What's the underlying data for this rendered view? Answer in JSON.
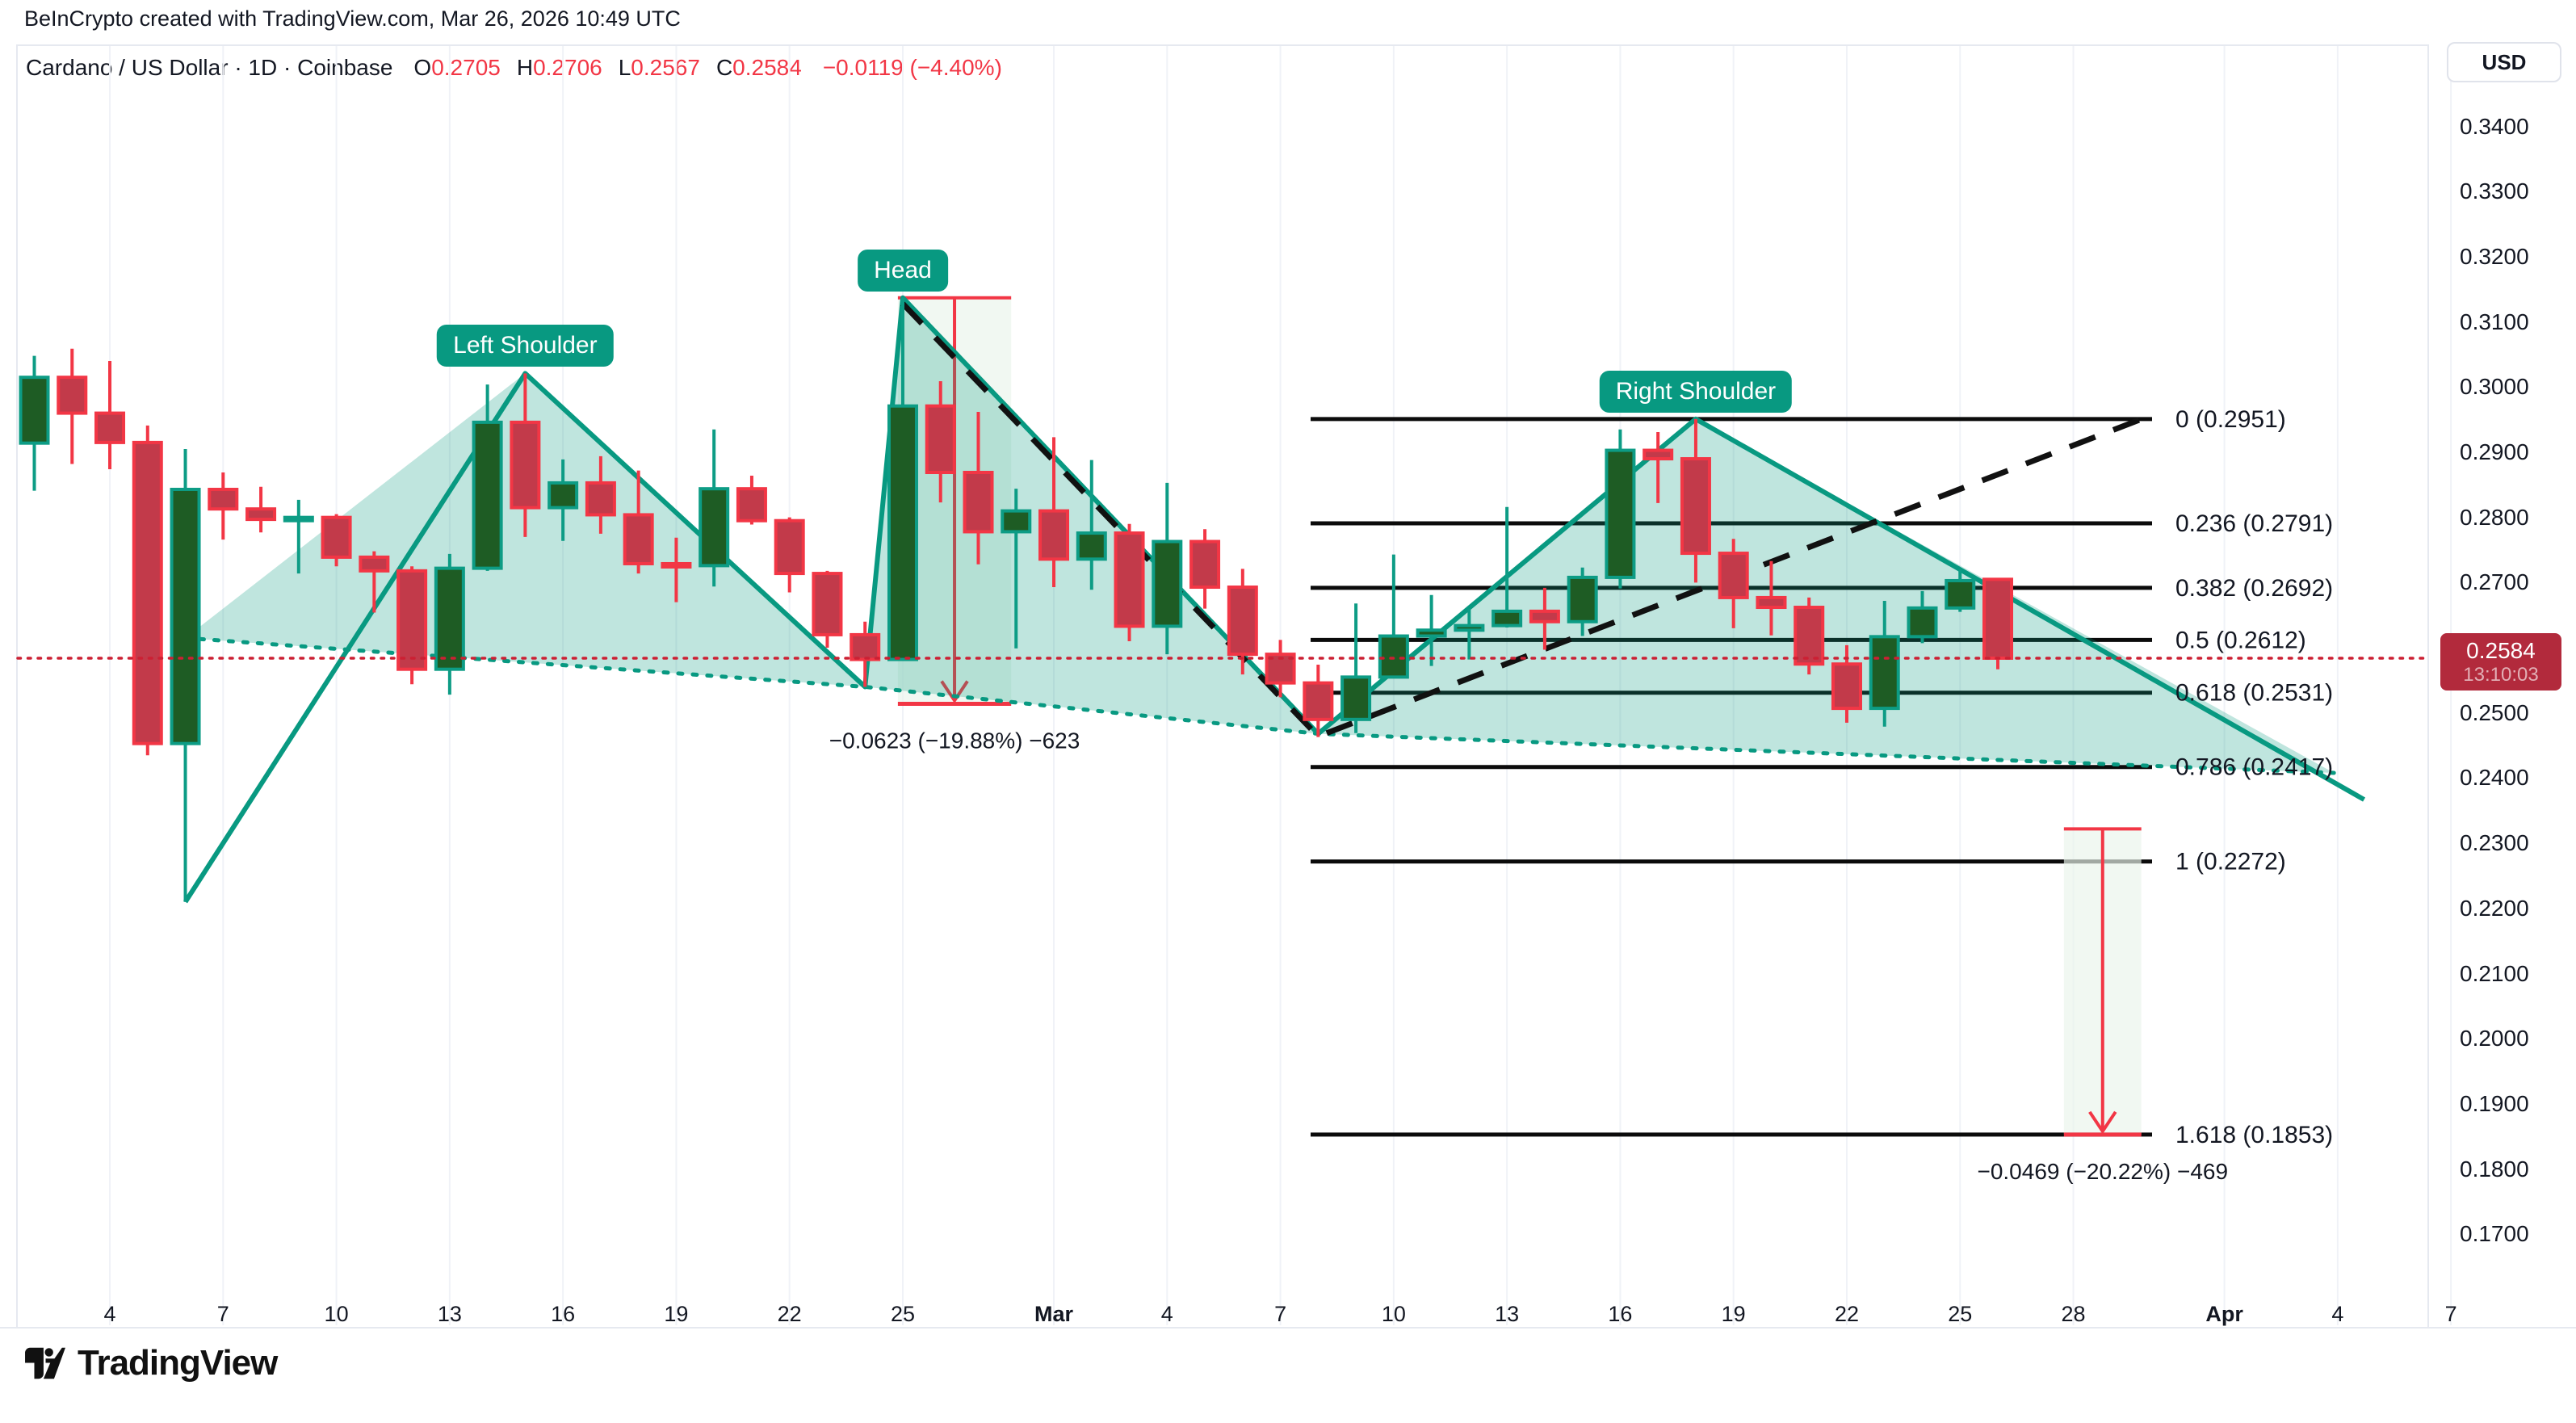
{
  "header": {
    "attribution": "BeInCrypto created with TradingView.com, Mar 26, 2026 10:49 UTC"
  },
  "symbol_bar": {
    "title": "Cardano / US Dollar · 1D · Coinbase",
    "ohlc": [
      {
        "label": "O",
        "value": "0.2705"
      },
      {
        "label": "H",
        "value": "0.2706"
      },
      {
        "label": "L",
        "value": "0.2567"
      },
      {
        "label": "C",
        "value": "0.2584"
      }
    ],
    "change": "−0.0119 (−4.40%)"
  },
  "price_axis": {
    "currency": "USD",
    "ticks": [
      "0.3400",
      "0.3300",
      "0.3200",
      "0.3100",
      "0.3000",
      "0.2900",
      "0.2800",
      "0.2700",
      "0.2600",
      "0.2500",
      "0.2400",
      "0.2300",
      "0.2200",
      "0.2100",
      "0.2000",
      "0.1900",
      "0.1800",
      "0.1700"
    ],
    "badge": {
      "price": "0.2584",
      "countdown": "13:10:03"
    }
  },
  "time_axis": {
    "ticks": [
      {
        "label": "4",
        "i": 2
      },
      {
        "label": "7",
        "i": 5
      },
      {
        "label": "10",
        "i": 8
      },
      {
        "label": "13",
        "i": 11
      },
      {
        "label": "16",
        "i": 14
      },
      {
        "label": "19",
        "i": 17
      },
      {
        "label": "22",
        "i": 20
      },
      {
        "label": "25",
        "i": 23
      },
      {
        "label": "Mar",
        "i": 27,
        "month": true
      },
      {
        "label": "4",
        "i": 30
      },
      {
        "label": "7",
        "i": 33
      },
      {
        "label": "10",
        "i": 36
      },
      {
        "label": "13",
        "i": 39
      },
      {
        "label": "16",
        "i": 42
      },
      {
        "label": "19",
        "i": 45
      },
      {
        "label": "22",
        "i": 48
      },
      {
        "label": "25",
        "i": 51
      },
      {
        "label": "28",
        "i": 54
      },
      {
        "label": "Apr",
        "i": 58,
        "month": true
      },
      {
        "label": "4",
        "i": 61
      },
      {
        "label": "7",
        "i": 64
      }
    ]
  },
  "fib_levels": [
    {
      "label": "0 (0.2951)",
      "ratio": 0,
      "price": 0.2951
    },
    {
      "label": "0.236 (0.2791)",
      "ratio": 0.236,
      "price": 0.2791
    },
    {
      "label": "0.382 (0.2692)",
      "ratio": 0.382,
      "price": 0.2692
    },
    {
      "label": "0.5 (0.2612)",
      "ratio": 0.5,
      "price": 0.2612
    },
    {
      "label": "0.618 (0.2531)",
      "ratio": 0.618,
      "price": 0.2531
    },
    {
      "label": "0.786 (0.2417)",
      "ratio": 0.786,
      "price": 0.2417
    },
    {
      "label": "1 (0.2272)",
      "ratio": 1,
      "price": 0.2272
    },
    {
      "label": "1.618 (0.1853)",
      "ratio": 1.618,
      "price": 0.1853
    }
  ],
  "pattern": {
    "labels": [
      {
        "text": "Left Shoulder",
        "i": 13,
        "p": 0.3021
      },
      {
        "text": "Head",
        "i": 23,
        "p": 0.3137
      },
      {
        "text": "Right Shoulder",
        "i": 44,
        "p": 0.2951
      }
    ],
    "solid_pivots": [
      {
        "i": 4,
        "p": 0.221
      },
      {
        "i": 13,
        "p": 0.3021
      },
      {
        "i": 22,
        "p": 0.254
      },
      {
        "i": 23,
        "p": 0.3137
      },
      {
        "i": 34,
        "p": 0.2468
      },
      {
        "i": 44,
        "p": 0.2951
      },
      {
        "i": 61.7,
        "p": 0.2367
      }
    ],
    "dotted_baseline": [
      {
        "i": 4,
        "p": 0.2615
      },
      {
        "i": 22,
        "p": 0.254
      },
      {
        "i": 34,
        "p": 0.2468
      },
      {
        "i": 60.9,
        "p": 0.2408
      }
    ],
    "dashed_neckline": [
      {
        "i": 23,
        "p": 0.3128
      },
      {
        "i": 34,
        "p": 0.2464
      },
      {
        "i": 55.9,
        "p": 0.2953
      }
    ]
  },
  "measurements": [
    {
      "text": "−0.0623 (−19.88%) −623",
      "from_price": 0.3137,
      "to_price": 0.2514,
      "i_start": 22.87,
      "i_end": 25.87
    },
    {
      "text": "−0.0469 (−20.22%) −469",
      "from_price": 0.2322,
      "to_price": 0.1853,
      "i_start": 53.75,
      "i_end": 55.8
    }
  ],
  "current_price_line": {
    "price": 0.2584
  },
  "logo": {
    "text": "TradingView"
  },
  "colors": {
    "up_fill": "#1e5c24",
    "up_stroke": "#0d9c85",
    "down_fill": "#c23a4a",
    "down_stroke": "#f23645",
    "pattern_teal": "#089981",
    "pattern_fill": "rgba(8,153,129,0.26)",
    "measure_band": "rgba(235,245,236,0.68)",
    "measure_red": "#f23645",
    "fib_black": "#0b0b0b",
    "dashed_black": "#111111",
    "dotted_price_red": "#cc2033",
    "grid": "#f0f2f7",
    "text_dark": "#131722",
    "badge_bg": "#b22a3c",
    "accent_red": "#f23645"
  },
  "chart_data": {
    "type": "candlestick",
    "symbol": "ADA/USD",
    "interval": "1D",
    "exchange": "Coinbase",
    "ylabel": "USD",
    "y_range": [
      0.164,
      0.352
    ],
    "x_range_dates": [
      "Feb 2",
      "Apr 7"
    ],
    "grid": "vertical-only",
    "candles": [
      {
        "d": "Feb 2",
        "o": 0.2914,
        "h": 0.3048,
        "l": 0.2841,
        "c": 0.3015
      },
      {
        "d": "Feb 3",
        "o": 0.3015,
        "h": 0.3059,
        "l": 0.2882,
        "c": 0.296
      },
      {
        "d": "Feb 4",
        "o": 0.296,
        "h": 0.304,
        "l": 0.2874,
        "c": 0.2915
      },
      {
        "d": "Feb 5",
        "o": 0.2915,
        "h": 0.2941,
        "l": 0.2435,
        "c": 0.2453
      },
      {
        "d": "Feb 6",
        "o": 0.2453,
        "h": 0.2905,
        "l": 0.221,
        "c": 0.2843
      },
      {
        "d": "Feb 7",
        "o": 0.2843,
        "h": 0.2869,
        "l": 0.2766,
        "c": 0.2813
      },
      {
        "d": "Feb 8",
        "o": 0.2813,
        "h": 0.2847,
        "l": 0.2777,
        "c": 0.2797
      },
      {
        "d": "Feb 9",
        "o": 0.2797,
        "h": 0.2827,
        "l": 0.2714,
        "c": 0.28
      },
      {
        "d": "Feb 10",
        "o": 0.28,
        "h": 0.2805,
        "l": 0.2725,
        "c": 0.2739
      },
      {
        "d": "Feb 11",
        "o": 0.2739,
        "h": 0.2748,
        "l": 0.2654,
        "c": 0.2718
      },
      {
        "d": "Feb 12",
        "o": 0.2718,
        "h": 0.2725,
        "l": 0.2544,
        "c": 0.2567
      },
      {
        "d": "Feb 13",
        "o": 0.2567,
        "h": 0.2744,
        "l": 0.2528,
        "c": 0.2722
      },
      {
        "d": "Feb 14",
        "o": 0.2722,
        "h": 0.3004,
        "l": 0.2718,
        "c": 0.2946
      },
      {
        "d": "Feb 15",
        "o": 0.2946,
        "h": 0.3021,
        "l": 0.277,
        "c": 0.2815
      },
      {
        "d": "Feb 16",
        "o": 0.2815,
        "h": 0.2889,
        "l": 0.2764,
        "c": 0.2853
      },
      {
        "d": "Feb 17",
        "o": 0.2853,
        "h": 0.2894,
        "l": 0.2775,
        "c": 0.2804
      },
      {
        "d": "Feb 18",
        "o": 0.2804,
        "h": 0.2872,
        "l": 0.2714,
        "c": 0.2729
      },
      {
        "d": "Feb 19",
        "o": 0.2729,
        "h": 0.2769,
        "l": 0.267,
        "c": 0.2726
      },
      {
        "d": "Feb 20",
        "o": 0.2726,
        "h": 0.2935,
        "l": 0.2694,
        "c": 0.2844
      },
      {
        "d": "Feb 21",
        "o": 0.2844,
        "h": 0.2864,
        "l": 0.2789,
        "c": 0.2795
      },
      {
        "d": "Feb 22",
        "o": 0.2795,
        "h": 0.28,
        "l": 0.2685,
        "c": 0.2714
      },
      {
        "d": "Feb 23",
        "o": 0.2714,
        "h": 0.2718,
        "l": 0.26,
        "c": 0.262
      },
      {
        "d": "Feb 24",
        "o": 0.262,
        "h": 0.264,
        "l": 0.254,
        "c": 0.2582
      },
      {
        "d": "Feb 25",
        "o": 0.2582,
        "h": 0.3137,
        "l": 0.258,
        "c": 0.2971
      },
      {
        "d": "Feb 26",
        "o": 0.2971,
        "h": 0.3009,
        "l": 0.2823,
        "c": 0.2869
      },
      {
        "d": "Feb 27",
        "o": 0.2869,
        "h": 0.2962,
        "l": 0.2728,
        "c": 0.2778
      },
      {
        "d": "Feb 28",
        "o": 0.2778,
        "h": 0.2844,
        "l": 0.2599,
        "c": 0.281
      },
      {
        "d": "Mar 1",
        "o": 0.281,
        "h": 0.2923,
        "l": 0.2693,
        "c": 0.2736
      },
      {
        "d": "Mar 2",
        "o": 0.2736,
        "h": 0.2888,
        "l": 0.2689,
        "c": 0.2776
      },
      {
        "d": "Mar 3",
        "o": 0.2776,
        "h": 0.279,
        "l": 0.261,
        "c": 0.2633
      },
      {
        "d": "Mar 4",
        "o": 0.2633,
        "h": 0.2853,
        "l": 0.259,
        "c": 0.2763
      },
      {
        "d": "Mar 5",
        "o": 0.2763,
        "h": 0.2782,
        "l": 0.266,
        "c": 0.2693
      },
      {
        "d": "Mar 6",
        "o": 0.2693,
        "h": 0.2721,
        "l": 0.2559,
        "c": 0.259
      },
      {
        "d": "Mar 7",
        "o": 0.259,
        "h": 0.2612,
        "l": 0.2524,
        "c": 0.2546
      },
      {
        "d": "Mar 8",
        "o": 0.2546,
        "h": 0.2574,
        "l": 0.2463,
        "c": 0.249
      },
      {
        "d": "Mar 9",
        "o": 0.249,
        "h": 0.2668,
        "l": 0.2469,
        "c": 0.2555
      },
      {
        "d": "Mar 10",
        "o": 0.2555,
        "h": 0.2743,
        "l": 0.2553,
        "c": 0.2618
      },
      {
        "d": "Mar 11",
        "o": 0.2618,
        "h": 0.2681,
        "l": 0.2572,
        "c": 0.2627
      },
      {
        "d": "Mar 12",
        "o": 0.2627,
        "h": 0.266,
        "l": 0.2582,
        "c": 0.2634
      },
      {
        "d": "Mar 13",
        "o": 0.2634,
        "h": 0.2816,
        "l": 0.2631,
        "c": 0.2656
      },
      {
        "d": "Mar 14",
        "o": 0.2656,
        "h": 0.2692,
        "l": 0.2597,
        "c": 0.264
      },
      {
        "d": "Mar 15",
        "o": 0.264,
        "h": 0.2723,
        "l": 0.2618,
        "c": 0.2708
      },
      {
        "d": "Mar 16",
        "o": 0.2708,
        "h": 0.2935,
        "l": 0.2691,
        "c": 0.2903
      },
      {
        "d": "Mar 17",
        "o": 0.2903,
        "h": 0.2931,
        "l": 0.2822,
        "c": 0.289
      },
      {
        "d": "Mar 18",
        "o": 0.289,
        "h": 0.2951,
        "l": 0.27,
        "c": 0.2745
      },
      {
        "d": "Mar 19",
        "o": 0.2745,
        "h": 0.2767,
        "l": 0.263,
        "c": 0.2677
      },
      {
        "d": "Mar 20",
        "o": 0.2677,
        "h": 0.2733,
        "l": 0.2619,
        "c": 0.2662
      },
      {
        "d": "Mar 21",
        "o": 0.2662,
        "h": 0.2677,
        "l": 0.2559,
        "c": 0.2575
      },
      {
        "d": "Mar 22",
        "o": 0.2575,
        "h": 0.2604,
        "l": 0.2485,
        "c": 0.2507
      },
      {
        "d": "Mar 23",
        "o": 0.2507,
        "h": 0.2672,
        "l": 0.2479,
        "c": 0.2617
      },
      {
        "d": "Mar 24",
        "o": 0.2617,
        "h": 0.2687,
        "l": 0.2607,
        "c": 0.2661
      },
      {
        "d": "Mar 25",
        "o": 0.2661,
        "h": 0.272,
        "l": 0.2655,
        "c": 0.2703
      },
      {
        "d": "Mar 26",
        "o": 0.2705,
        "h": 0.2706,
        "l": 0.2567,
        "c": 0.2584
      }
    ]
  }
}
